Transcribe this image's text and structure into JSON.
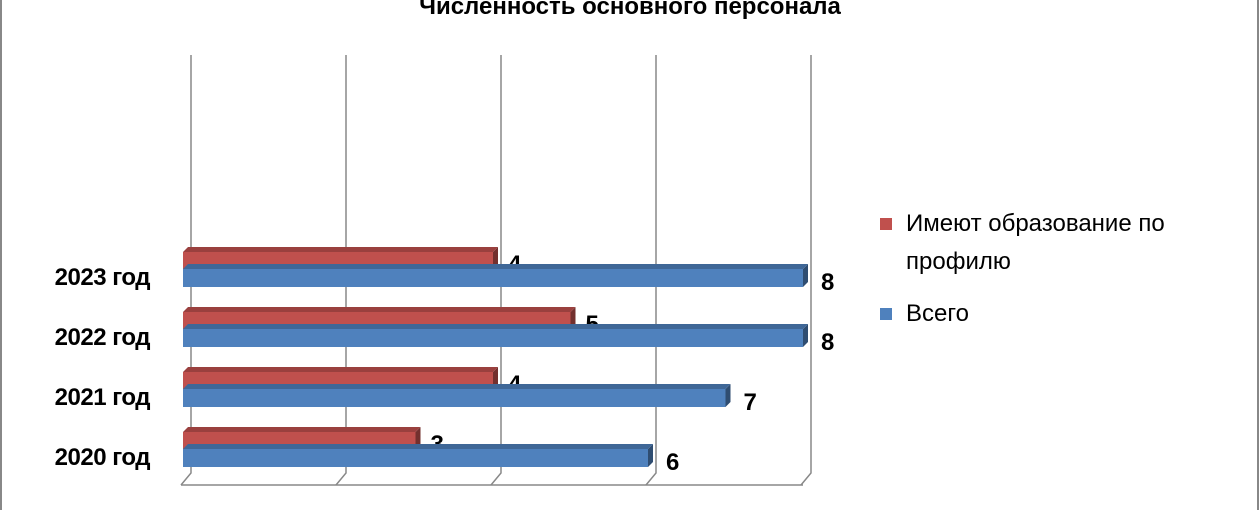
{
  "chart_data": {
    "type": "bar3d_horizontal",
    "title": "Численность основного персонала",
    "categories": [
      "2020 год",
      "2021 год",
      "2022 год",
      "2023 год"
    ],
    "series": [
      {
        "name": "Имеют образование по профилю",
        "color": "#c0504d",
        "values": [
          3,
          4,
          5,
          4
        ]
      },
      {
        "name": "Всего",
        "color": "#4f81bd",
        "values": [
          6,
          7,
          8,
          8
        ]
      }
    ],
    "xlim": [
      0,
      8
    ],
    "xticks": [
      0,
      2,
      4,
      6,
      8
    ],
    "grid": true,
    "legend": "right"
  }
}
